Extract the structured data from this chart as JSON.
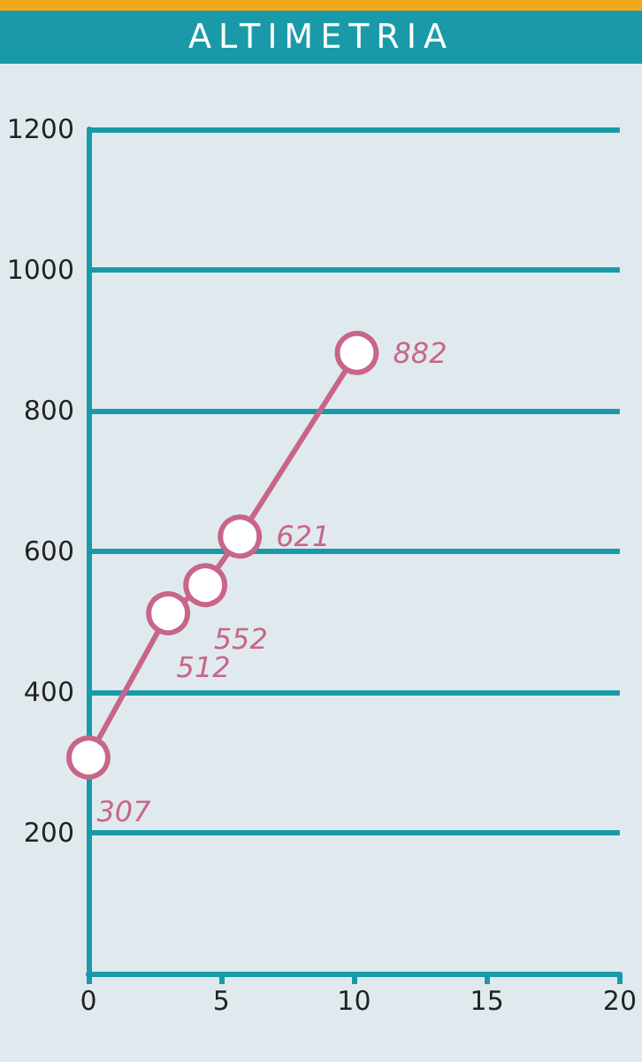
{
  "chart_data": {
    "type": "line",
    "title": "ALTIMETRIA",
    "x": [
      0,
      3,
      4.4,
      5.7,
      10.1
    ],
    "series": [
      {
        "color": "#c8658a",
        "values": [
          307,
          512,
          552,
          621,
          882
        ]
      }
    ],
    "xlim": [
      0,
      20
    ],
    "xticks": [
      0,
      5,
      10,
      15,
      20
    ],
    "ylim": [
      0,
      1200
    ],
    "yticks": [
      200,
      400,
      600,
      800,
      1000,
      1200
    ],
    "grid": "y",
    "marker": "circle",
    "line_style": "solid",
    "data_labels": true
  }
}
